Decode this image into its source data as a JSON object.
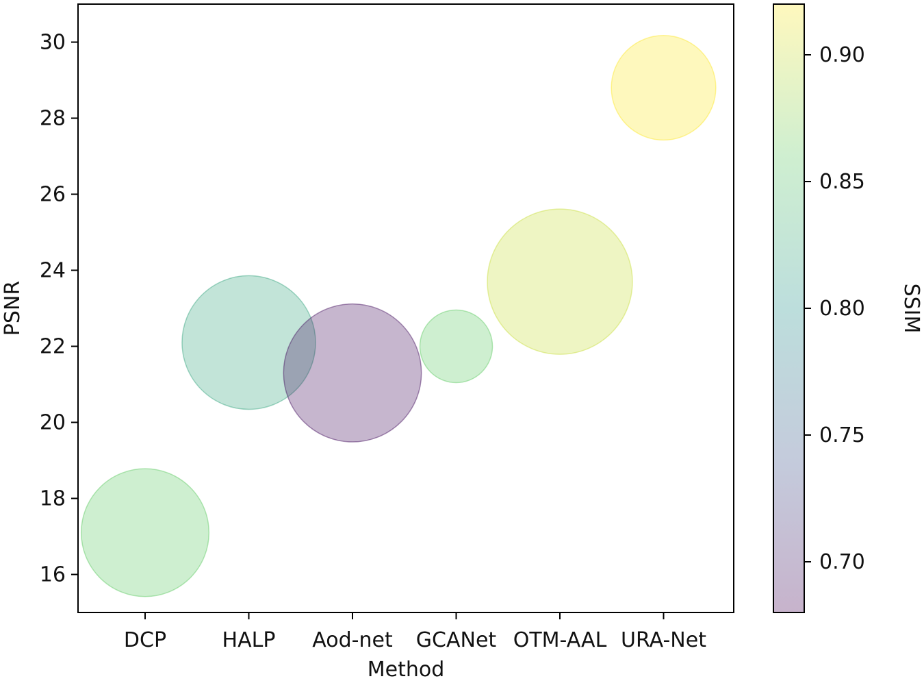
{
  "chart_data": {
    "type": "scatter",
    "subtype": "bubble",
    "title": "",
    "xlabel": "Method",
    "ylabel": "PSNR",
    "categories": [
      "DCP",
      "HALP",
      "Aod-net",
      "GCANet",
      "OTM-AAL",
      "URA-Net"
    ],
    "psnr": [
      17.1,
      22.1,
      21.3,
      22.0,
      23.7,
      28.8
    ],
    "ssim": [
      0.86,
      0.82,
      0.69,
      0.86,
      0.9,
      0.92
    ],
    "bubble_size_relative": [
      0.88,
      0.92,
      0.95,
      0.5,
      1.0,
      0.72
    ],
    "ylim": [
      15,
      31
    ],
    "yticks": [
      16,
      18,
      20,
      22,
      24,
      26,
      28,
      30
    ],
    "colorbar": {
      "label": "SSIM",
      "range": [
        0.68,
        0.92
      ],
      "ticks": [
        0.7,
        0.75,
        0.8,
        0.85,
        0.9
      ],
      "tick_labels": [
        "0.70",
        "0.75",
        "0.80",
        "0.85",
        "0.90"
      ],
      "colormap": [
        "#440154",
        "#3b528b",
        "#21918c",
        "#5ec962",
        "#fde725"
      ]
    },
    "alpha": 0.3,
    "grid": false,
    "legend": "none"
  }
}
